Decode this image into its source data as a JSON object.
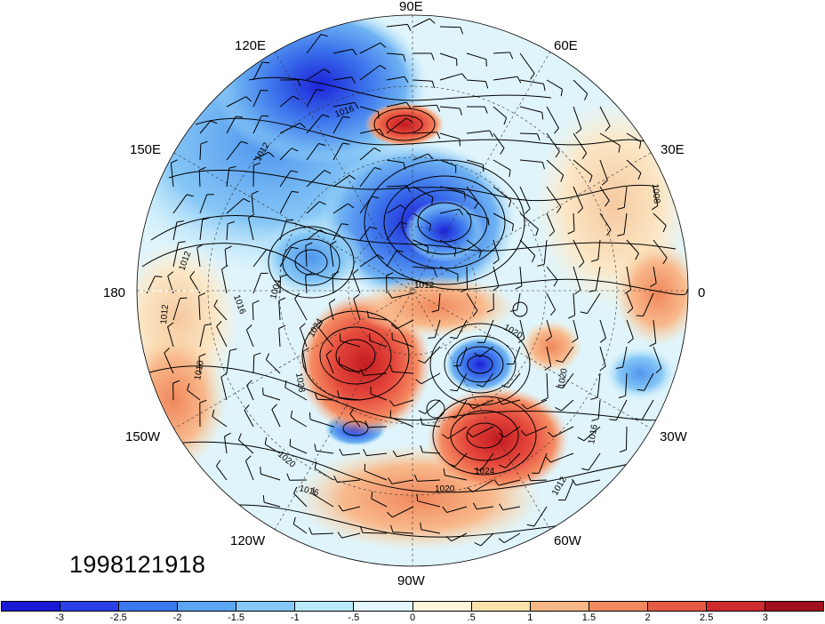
{
  "map": {
    "projection": "north-polar-stereographic",
    "field_shading": "anomaly",
    "contours": "sea-level-pressure",
    "vectors": "wind-barbs",
    "longitude_labels": [
      {
        "id": "lon-90e",
        "text": "90E"
      },
      {
        "id": "lon-60e",
        "text": "60E"
      },
      {
        "id": "lon-30e",
        "text": "30E"
      },
      {
        "id": "lon-0",
        "text": "0"
      },
      {
        "id": "lon-30w",
        "text": "30W"
      },
      {
        "id": "lon-60w",
        "text": "60W"
      },
      {
        "id": "lon-90w",
        "text": "90W"
      },
      {
        "id": "lon-120w",
        "text": "120W"
      },
      {
        "id": "lon-150w",
        "text": "150W"
      },
      {
        "id": "lon-180",
        "text": "180"
      },
      {
        "id": "lon-150e",
        "text": "150E"
      },
      {
        "id": "lon-120e",
        "text": "120E"
      }
    ],
    "contour_labels": [
      "1016",
      "1012",
      "1012",
      "1016",
      "1004",
      "1012",
      "1012",
      "1010",
      "1024",
      "1028",
      "1020",
      "1016",
      "1024",
      "1020",
      "1020",
      "1016",
      "1012",
      "1008",
      "1020"
    ]
  },
  "timestamp": "1998121918",
  "colorbar": {
    "colors": [
      "#1a1ad6",
      "#2b3fe8",
      "#3b78ee",
      "#5aa6f2",
      "#85c8f7",
      "#b8e9fb",
      "#e3f7fd",
      "#fdf6dc",
      "#fbe2ad",
      "#f7b785",
      "#f08a5e",
      "#e55a45",
      "#cf2a2e",
      "#a20f1e"
    ],
    "tick_labels": [
      "-3",
      "-2.5",
      "-2",
      "-1.5",
      "-1",
      "-.5",
      "0",
      ".5",
      "1",
      "1.5",
      "2",
      "2.5",
      "3"
    ]
  }
}
